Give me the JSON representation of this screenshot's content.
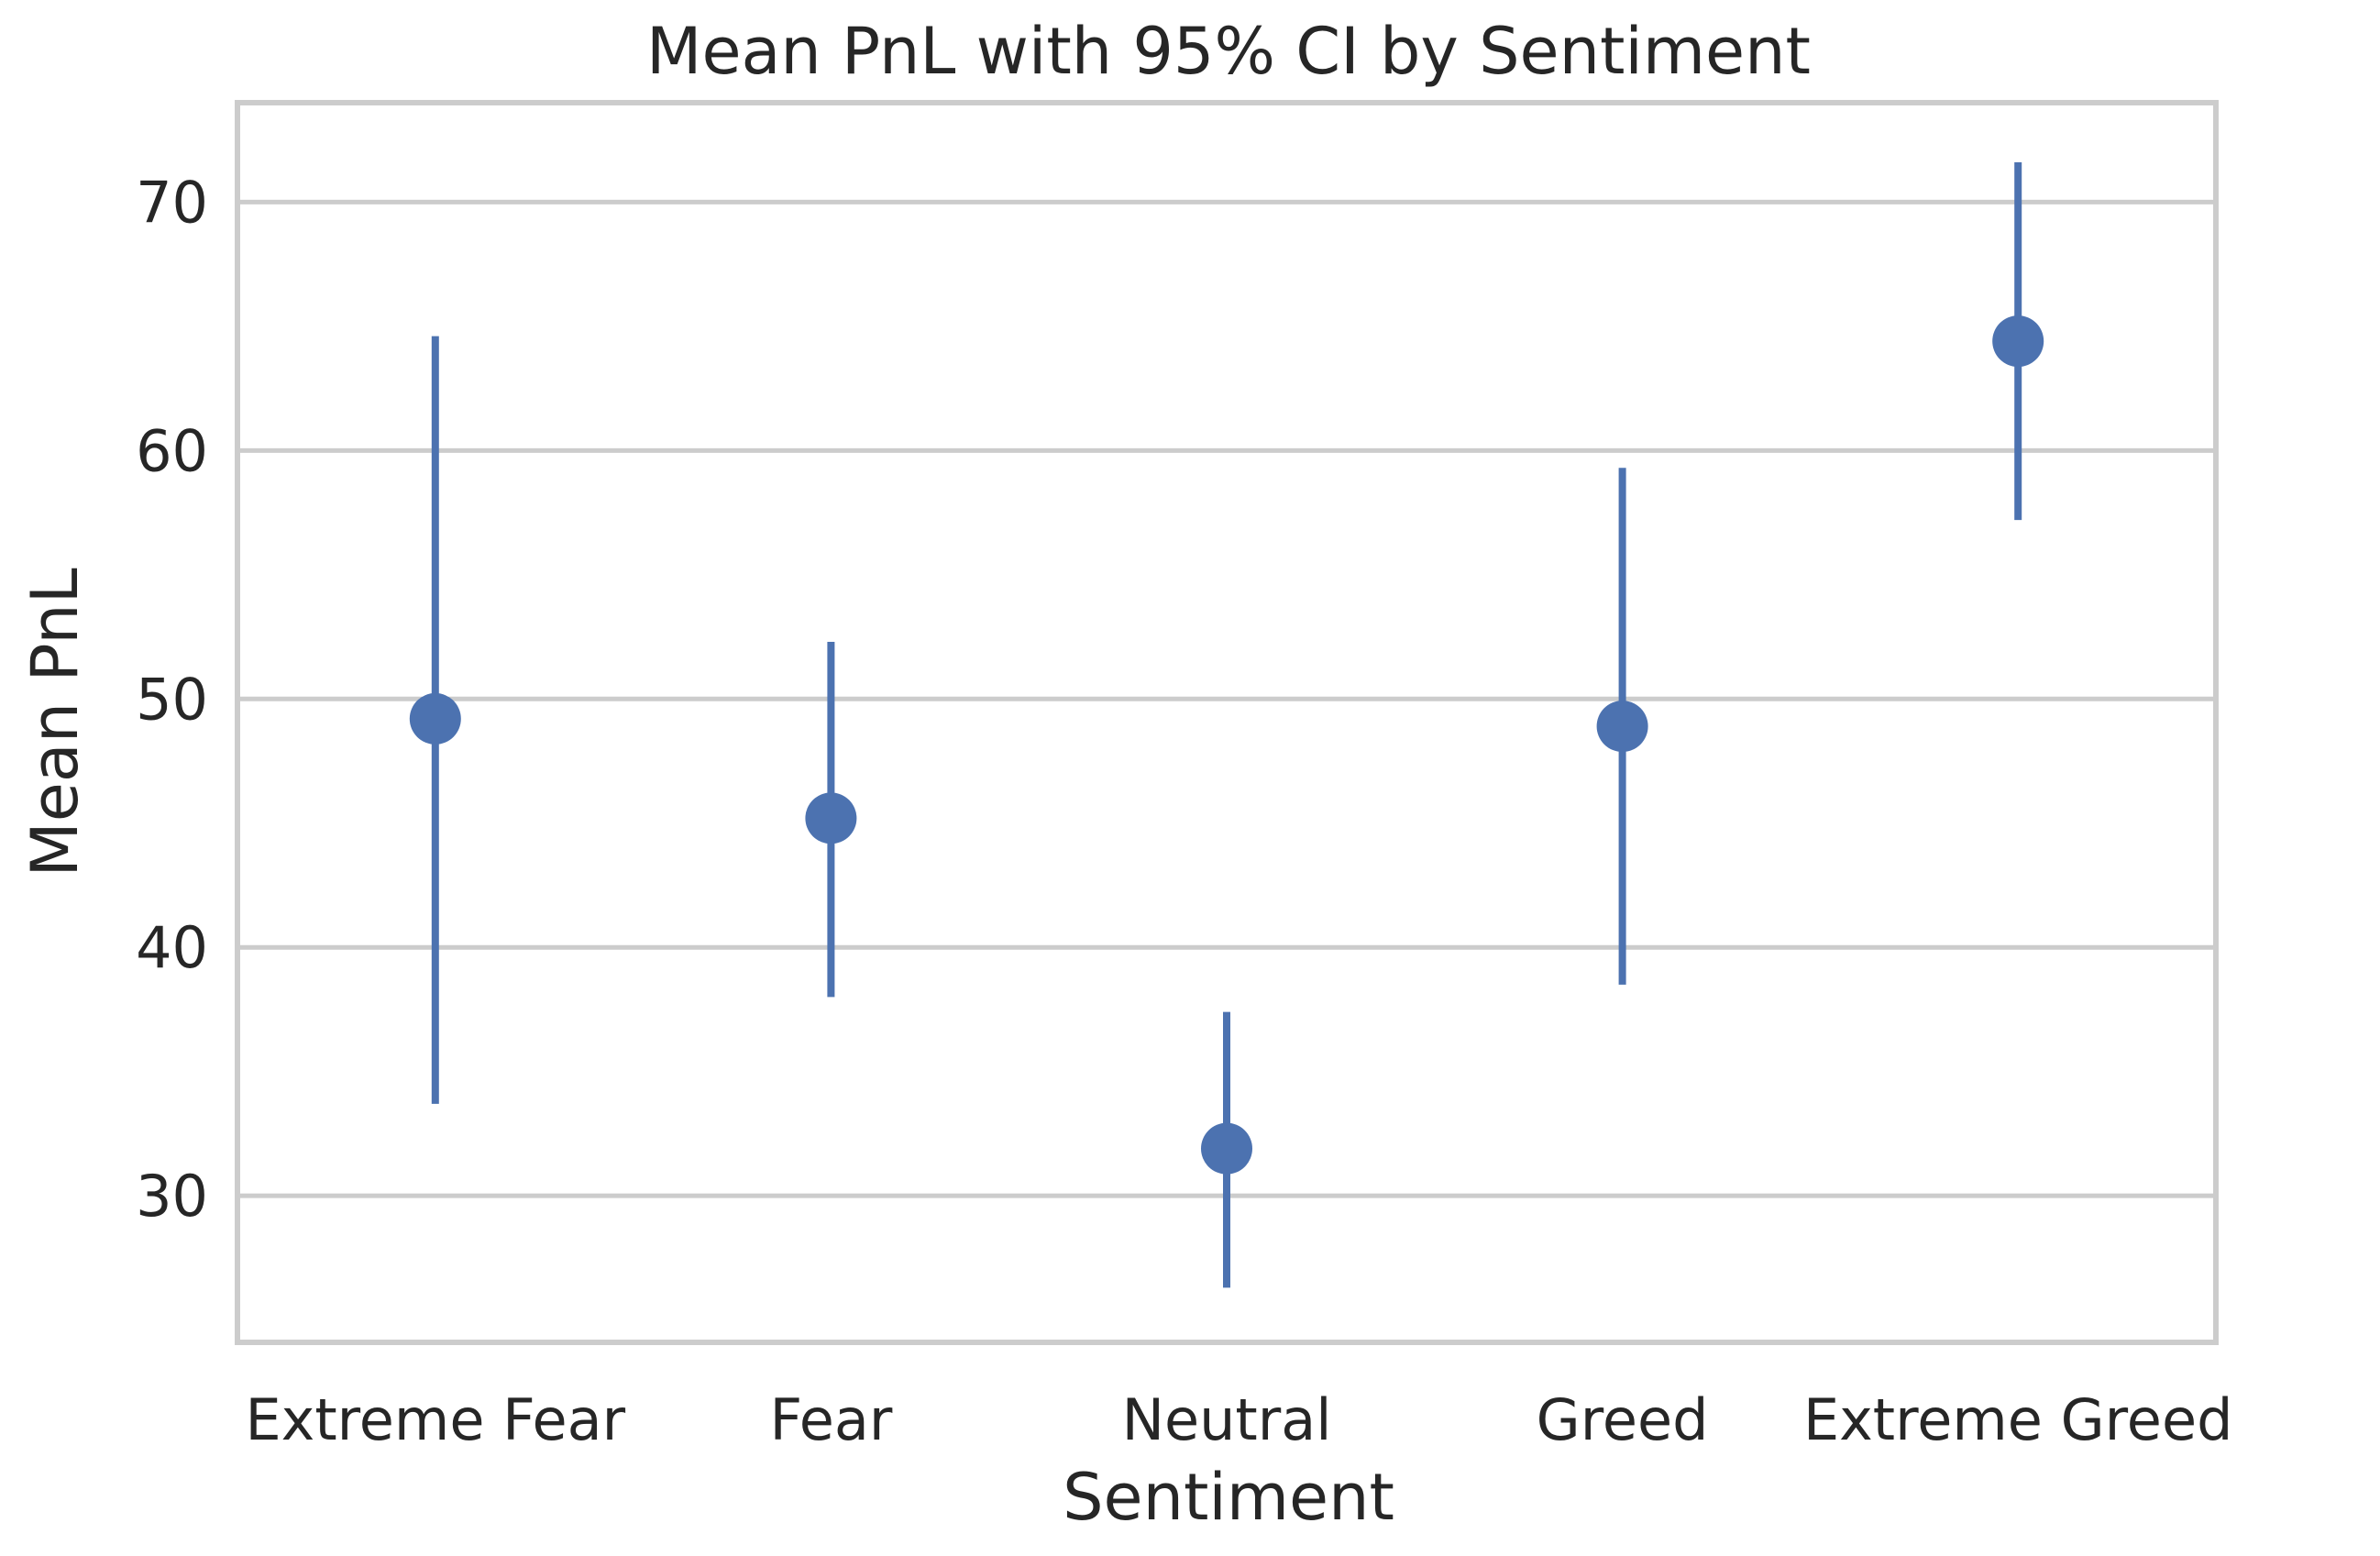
{
  "chart_data": {
    "type": "scatter",
    "title": "Mean PnL with 95% CI by Sentiment",
    "xlabel": "Sentiment",
    "ylabel": "Mean PnL",
    "categories": [
      "Extreme Fear",
      "Fear",
      "Neutral",
      "Greed",
      "Extreme Greed"
    ],
    "series": [
      {
        "values": [
          49.2,
          45.2,
          31.9,
          48.9,
          64.4
        ],
        "ci_low": [
          33.7,
          38.0,
          26.3,
          38.5,
          57.2
        ],
        "ci_high": [
          64.6,
          52.3,
          37.4,
          59.3,
          71.6
        ]
      }
    ],
    "ylim": [
      24.1,
      74.0
    ],
    "yticks": [
      30,
      40,
      50,
      60,
      70
    ],
    "yticks_labels": [
      "30",
      "40",
      "50",
      "60",
      "70"
    ],
    "grid": "horizontal",
    "legend": "none",
    "colors": {
      "point": "#4c72b0",
      "grid": "#cccccc",
      "text": "#262626"
    }
  }
}
